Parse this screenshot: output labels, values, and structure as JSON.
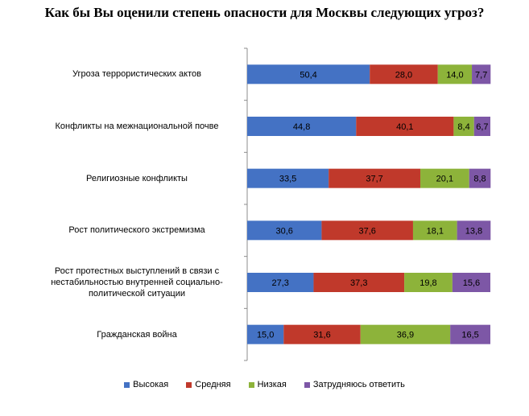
{
  "chart_data": {
    "type": "bar",
    "orientation": "horizontal",
    "stacked": true,
    "title": "Как бы Вы оценили степень опасности для Москвы следующих угроз?",
    "categories": [
      "Угроза террористических актов",
      "Конфликты на межнациональной почве",
      "Религиозные конфликты",
      "Рост политического экстремизма",
      "Рост протестных выступлений в связи с нестабильностью внутренней  социально-политической ситуации",
      "Гражданская война"
    ],
    "series": [
      {
        "name": "Высокая",
        "color": "#4472C4",
        "values": [
          50.4,
          44.8,
          33.5,
          30.6,
          27.3,
          15.0
        ]
      },
      {
        "name": "Средняя",
        "color": "#C0392B",
        "values": [
          28.0,
          40.1,
          37.7,
          37.6,
          37.3,
          31.6
        ]
      },
      {
        "name": "Низкая",
        "color": "#8DB33A",
        "values": [
          14.0,
          8.4,
          20.1,
          18.1,
          19.8,
          36.9
        ]
      },
      {
        "name": "Затрудняюсь ответить",
        "color": "#7D57A6",
        "values": [
          7.7,
          6.7,
          8.8,
          13.8,
          15.6,
          16.5
        ]
      }
    ],
    "value_labels": [
      [
        "50,4",
        "28,0",
        "14,0",
        "7,7"
      ],
      [
        "44,8",
        "40,1",
        "8,4",
        "6,7"
      ],
      [
        "33,5",
        "37,7",
        "20,1",
        "8,8"
      ],
      [
        "30,6",
        "37,6",
        "18,1",
        "13,8"
      ],
      [
        "27,3",
        "37,3",
        "19,8",
        "15,6"
      ],
      [
        "15,0",
        "31,6",
        "36,9",
        "16,5"
      ]
    ],
    "xlim": [
      0,
      100
    ],
    "xlabel": "",
    "ylabel": "",
    "grid": false,
    "legend_position": "bottom"
  }
}
